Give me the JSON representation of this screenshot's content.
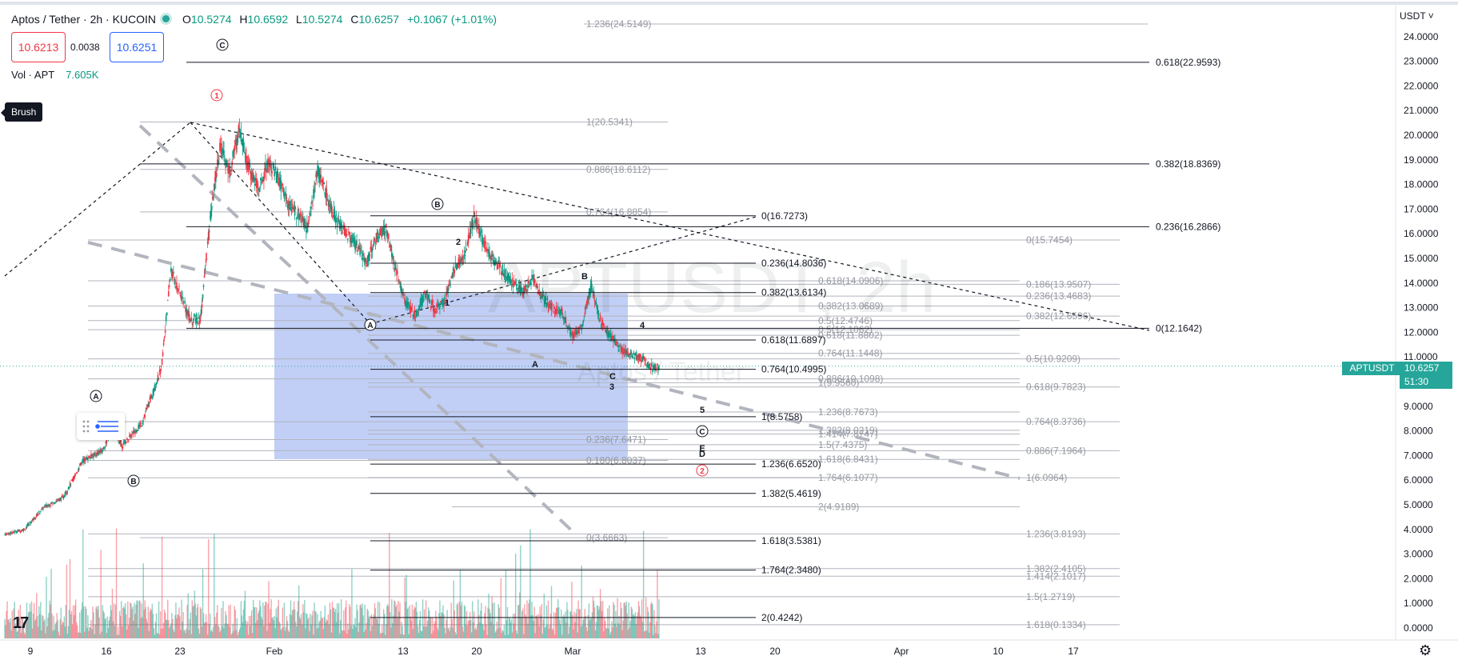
{
  "header": {
    "symbol_title": "Aptos / Tether · 2h · KUCOIN",
    "open_label": "O",
    "open": "10.5274",
    "high_label": "H",
    "high": "10.6592",
    "low_label": "L",
    "low": "10.5274",
    "close_label": "C",
    "close": "10.6257",
    "change": "+0.1067 (+1.01%)"
  },
  "trade": {
    "sell_price": "10.6213",
    "spread": "0.0038",
    "buy_price": "10.6251"
  },
  "volume": {
    "label": "Vol · APT",
    "value": "7.605K"
  },
  "tooltip": {
    "brush": "Brush"
  },
  "price_scale": {
    "unit": "USDT",
    "current_symbol": "APTUSDT",
    "current_price": "10.6257",
    "countdown": "51:30"
  },
  "watermark": {
    "ticker": "APTUSDT, 2h",
    "name": "Aptos / Tether"
  },
  "colors": {
    "up": "#089981",
    "down": "#f23645",
    "accent": "#2962ff",
    "box": "#a9bdf2",
    "label_red": "#f23645"
  },
  "icons": {
    "logo": "tradingview-logo-icon",
    "settings": "gear-icon",
    "drawing": "brush-icon"
  },
  "chart_data": {
    "type": "candlestick",
    "title": "Aptos / Tether · 2h · KUCOIN",
    "x_ticks": [
      "9",
      "16",
      "23",
      "Feb",
      "13",
      "20",
      "Mar",
      "13",
      "20",
      "Apr",
      "10",
      "17"
    ],
    "y_ticks": [
      "0.0000",
      "1.0000",
      "2.0000",
      "3.0000",
      "4.0000",
      "5.0000",
      "6.0000",
      "7.0000",
      "8.0000",
      "9.0000",
      "10.0000",
      "11.0000",
      "12.0000",
      "13.0000",
      "14.0000",
      "15.0000",
      "16.0000",
      "17.0000",
      "18.0000",
      "19.0000",
      "20.0000",
      "21.0000",
      "22.0000",
      "23.0000",
      "24.0000"
    ],
    "ylim": [
      -0.2,
      25.2
    ],
    "price_path": [
      [
        0,
        3.8
      ],
      [
        2,
        4.0
      ],
      [
        4,
        4.9
      ],
      [
        6,
        5.3
      ],
      [
        8,
        6.8
      ],
      [
        10,
        7.2
      ],
      [
        11,
        8.1
      ],
      [
        12,
        7.4
      ],
      [
        14,
        8.3
      ],
      [
        16,
        10.5
      ],
      [
        17,
        14.5
      ],
      [
        18,
        13.5
      ],
      [
        19,
        12.5
      ],
      [
        20,
        12.5
      ],
      [
        21,
        16.5
      ],
      [
        22,
        19.6
      ],
      [
        23,
        18.5
      ],
      [
        24,
        20.3
      ],
      [
        25,
        18.6
      ],
      [
        26,
        17.8
      ],
      [
        27,
        19.0
      ],
      [
        28,
        18.2
      ],
      [
        29,
        17.2
      ],
      [
        30,
        16.8
      ],
      [
        31,
        16.2
      ],
      [
        32,
        18.6
      ],
      [
        33,
        17.5
      ],
      [
        34,
        16.5
      ],
      [
        35,
        16.0
      ],
      [
        36,
        15.5
      ],
      [
        37,
        14.8
      ],
      [
        38,
        15.9
      ],
      [
        39,
        16.2
      ],
      [
        40,
        14.5
      ],
      [
        41,
        13.2
      ],
      [
        42,
        12.7
      ],
      [
        43,
        13.6
      ],
      [
        44,
        12.9
      ],
      [
        45,
        13.3
      ],
      [
        46,
        14.6
      ],
      [
        47,
        15.1
      ],
      [
        48,
        16.7
      ],
      [
        49,
        15.6
      ],
      [
        50,
        14.9
      ],
      [
        51,
        14.5
      ],
      [
        52,
        14.0
      ],
      [
        53,
        13.6
      ],
      [
        54,
        14.2
      ],
      [
        55,
        13.4
      ],
      [
        56,
        13.0
      ],
      [
        57,
        12.8
      ],
      [
        58,
        11.9
      ],
      [
        59,
        12.2
      ],
      [
        60,
        13.9
      ],
      [
        61,
        12.4
      ],
      [
        62,
        11.8
      ],
      [
        63,
        11.3
      ],
      [
        64,
        11.1
      ],
      [
        65,
        11.0
      ],
      [
        66,
        10.6
      ],
      [
        67,
        10.6
      ]
    ],
    "annotations": {
      "wave_labels": [
        "A",
        "B",
        "C",
        "1",
        "2",
        "A",
        "B",
        "C",
        "1",
        "2",
        "3",
        "4",
        "5",
        "A",
        "B",
        "C",
        "D",
        "E"
      ],
      "fib_dark": [
        "0.618(22.9593)",
        "0.382(18.8369)",
        "0.236(16.2866)",
        "0(12.1642)",
        "0(16.7273)",
        "0.236(14.8036)",
        "0.382(13.6134)",
        "0.618(11.6897)",
        "0.764(10.4995)",
        "1(8.5758)",
        "1.236(6.6520)",
        "1.382(5.4619)",
        "1.618(3.5381)",
        "1.764(2.3480)",
        "2(0.4242)"
      ],
      "fib_light": [
        "1.236(24.5149)",
        "1(20.5341)",
        "0.886(18.6112)",
        "0.764(16.8854)",
        "0.618(14.0906)",
        "0.382(13.0689)",
        "0.5(12.4746)",
        "0.5(12.1062)",
        "0.618(11.8802)",
        "0.764(11.1448)",
        "0.886(10.1098)",
        "1(9.9560)",
        "1.236(8.7673)",
        "1.382(8.0219)",
        "1.414(7.8747)",
        "1.5(7.4375)",
        "1.618(6.8431)",
        "1.764(6.1077)",
        "2(4.9189)",
        "0.236(7.6471)",
        "0.180(6.8037)",
        "0(3.6663)",
        "0(15.7454)",
        "0.186(13.9507)",
        "0.236(13.4683)",
        "0.382(12.6596)",
        "0.5(10.9209)",
        "0.618(9.7823)",
        "0.764(8.3736)",
        "0.886(7.1964)",
        "1(6.0964)",
        "1.236(3.8193)",
        "1.382(2.4105)",
        "1.414(2.1017)",
        "1.5(1.2719)",
        "1.618(0.1334)"
      ]
    }
  }
}
